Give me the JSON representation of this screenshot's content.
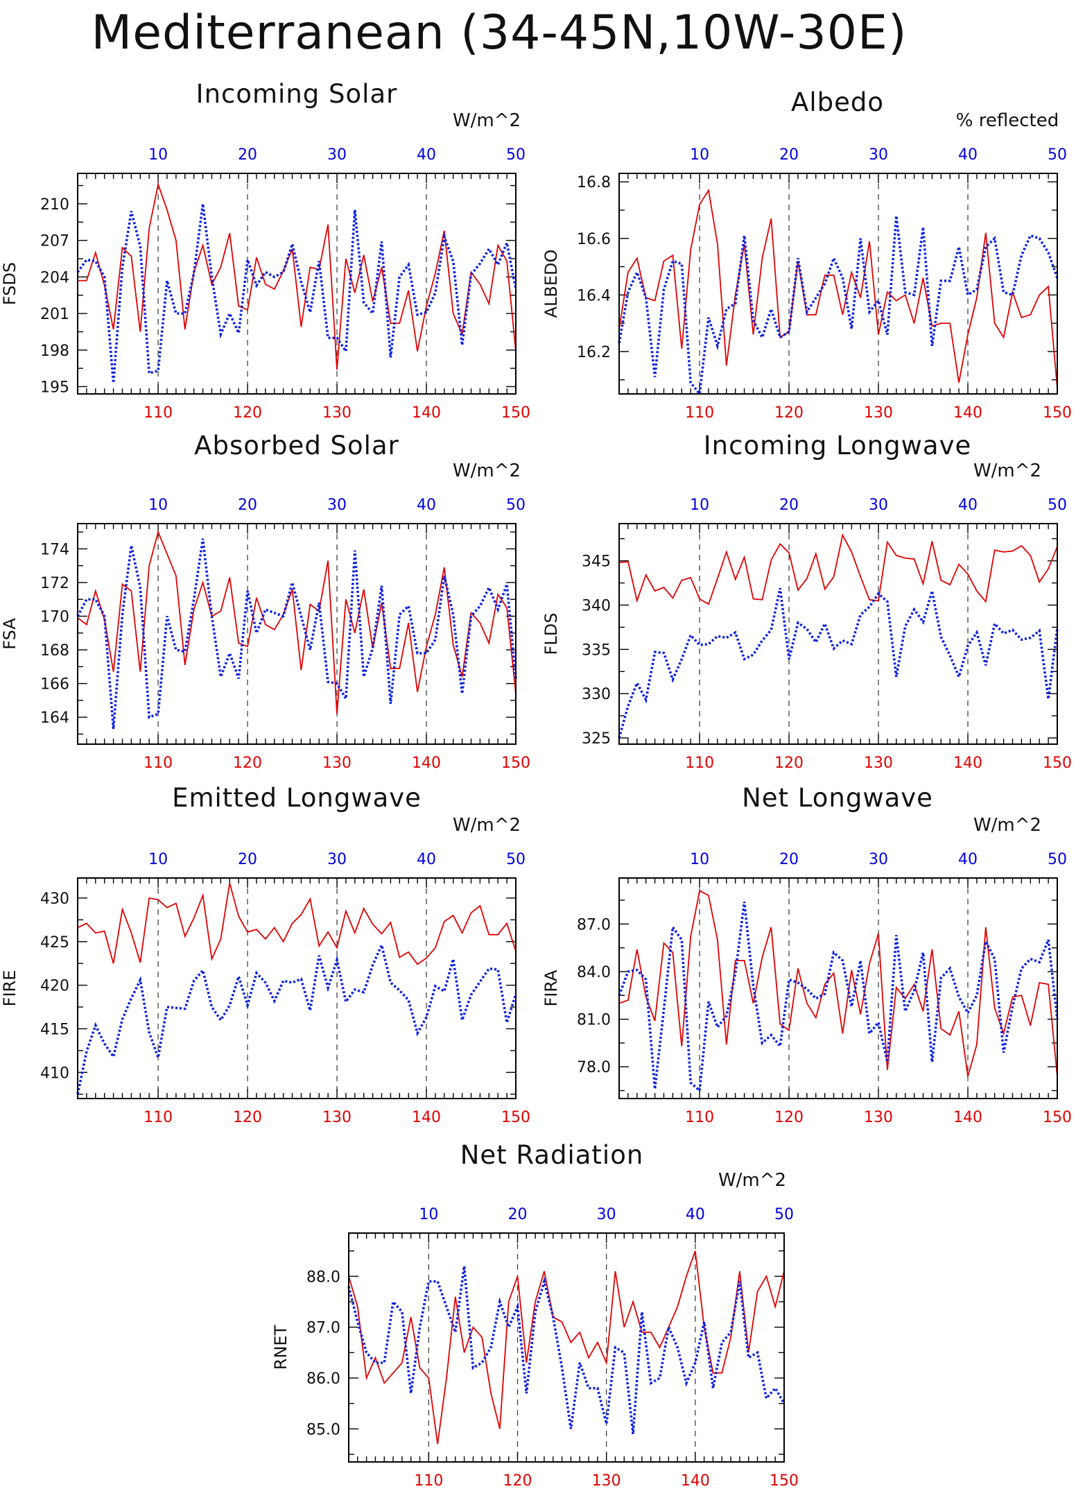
{
  "title": "Mediterranean (34-45N,10W-30E)",
  "colors": {
    "bottom_axis": "#e00000",
    "top_axis": "#0000e0",
    "series1": "#e00000",
    "series2": "#0a20e0"
  },
  "chart_data": [
    {
      "type": "line",
      "name": "fsds",
      "title": "Incoming Solar",
      "units": "W/m^2",
      "ylabel": "FSDS",
      "xlim_bottom": [
        101,
        150
      ],
      "xticks_bottom": [
        110,
        120,
        130,
        140,
        150
      ],
      "xlim_top": [
        1,
        50
      ],
      "xticks_top": [
        10,
        20,
        30,
        40,
        50
      ],
      "ylim": [
        194.4,
        212.5
      ],
      "yticks": [
        195,
        198,
        201,
        204,
        207,
        210
      ],
      "yticklabels": [
        "195",
        "198",
        "201",
        "204",
        "207",
        "210"
      ],
      "vlines_bottom": [
        110,
        120,
        130,
        140
      ],
      "series": [
        {
          "style": "solid",
          "values": [
            203.7,
            203.7,
            206.0,
            203.3,
            199.7,
            206.4,
            205.7,
            199.5,
            208.0,
            211.6,
            209.5,
            207.0,
            199.7,
            204.4,
            206.6,
            203.4,
            204.8,
            207.6,
            201.6,
            201.3,
            205.6,
            203.4,
            203.0,
            204.5,
            206.3,
            199.9,
            204.8,
            204.6,
            208.3,
            196.4,
            205.5,
            202.7,
            205.8,
            202.0,
            204.8,
            200.2,
            200.2,
            202.9,
            197.9,
            201.6,
            204.3,
            207.8,
            201.0,
            199.3,
            204.4,
            203.4,
            201.8,
            206.6,
            205.3,
            197.9
          ]
        },
        {
          "style": "dotted",
          "values": [
            204.4,
            205.4,
            205.3,
            204.0,
            195.3,
            204.8,
            209.4,
            206.5,
            196.1,
            196.3,
            203.7,
            201.0,
            201.0,
            204.3,
            210.0,
            204.0,
            199.3,
            201.0,
            199.4,
            205.4,
            203.3,
            204.4,
            204.0,
            204.4,
            206.7,
            203.6,
            201.1,
            205.3,
            199.0,
            199.0,
            197.9,
            209.5,
            201.9,
            201.0,
            206.9,
            197.4,
            204.0,
            205.0,
            200.9,
            201.1,
            202.7,
            207.3,
            205.3,
            198.4,
            204.2,
            205.1,
            206.3,
            205.0,
            206.8,
            203.0
          ]
        }
      ]
    },
    {
      "type": "line",
      "name": "albedo",
      "title": "Albedo",
      "units": "% reflected",
      "ylabel": "ALBEDO",
      "xlim_bottom": [
        101,
        150
      ],
      "xticks_bottom": [
        110,
        120,
        130,
        140,
        150
      ],
      "xlim_top": [
        1,
        50
      ],
      "xticks_top": [
        10,
        20,
        30,
        40,
        50
      ],
      "ylim": [
        16.05,
        16.83
      ],
      "yticks": [
        16.2,
        16.4,
        16.6,
        16.8
      ],
      "yticklabels": [
        "16.2",
        "16.4",
        "16.6",
        "16.8"
      ],
      "vlines_bottom": [
        110,
        120,
        130,
        140
      ],
      "series": [
        {
          "style": "solid",
          "values": [
            16.28,
            16.48,
            16.53,
            16.39,
            16.38,
            16.52,
            16.54,
            16.21,
            16.56,
            16.72,
            16.77,
            16.58,
            16.15,
            16.4,
            16.58,
            16.26,
            16.53,
            16.67,
            16.25,
            16.27,
            16.52,
            16.33,
            16.33,
            16.47,
            16.47,
            16.33,
            16.48,
            16.39,
            16.59,
            16.26,
            16.41,
            16.38,
            16.4,
            16.3,
            16.46,
            16.29,
            16.3,
            16.3,
            16.09,
            16.26,
            16.39,
            16.62,
            16.3,
            16.25,
            16.41,
            16.32,
            16.33,
            16.4,
            16.43,
            16.07
          ]
        },
        {
          "style": "dotted",
          "values": [
            16.23,
            16.41,
            16.48,
            16.39,
            16.11,
            16.42,
            16.52,
            16.51,
            16.09,
            16.05,
            16.32,
            16.22,
            16.35,
            16.37,
            16.61,
            16.31,
            16.25,
            16.35,
            16.25,
            16.27,
            16.53,
            16.34,
            16.39,
            16.44,
            16.53,
            16.46,
            16.28,
            16.6,
            16.34,
            16.38,
            16.26,
            16.68,
            16.41,
            16.4,
            16.64,
            16.22,
            16.45,
            16.45,
            16.57,
            16.4,
            16.42,
            16.57,
            16.6,
            16.41,
            16.4,
            16.54,
            16.61,
            16.6,
            16.55,
            16.46
          ]
        }
      ]
    },
    {
      "type": "line",
      "name": "fsa",
      "title": "Absorbed Solar",
      "units": "W/m^2",
      "ylabel": "FSA",
      "xlim_bottom": [
        101,
        150
      ],
      "xticks_bottom": [
        110,
        120,
        130,
        140,
        150
      ],
      "xlim_top": [
        1,
        50
      ],
      "xticks_top": [
        10,
        20,
        30,
        40,
        50
      ],
      "ylim": [
        162.4,
        175.5
      ],
      "yticks": [
        164,
        166,
        168,
        170,
        172,
        174
      ],
      "yticklabels": [
        "164",
        "166",
        "168",
        "170",
        "172",
        "174"
      ],
      "vlines_bottom": [
        110,
        120,
        130,
        140
      ],
      "series": [
        {
          "style": "solid",
          "values": [
            169.9,
            169.5,
            171.5,
            169.8,
            166.7,
            171.9,
            171.5,
            166.7,
            173.0,
            175.0,
            173.7,
            172.4,
            167.1,
            170.4,
            172.0,
            170.0,
            170.3,
            172.3,
            168.4,
            168.2,
            171.1,
            169.5,
            169.2,
            170.1,
            171.6,
            166.8,
            170.7,
            170.3,
            173.3,
            164.2,
            171.0,
            169.0,
            171.6,
            168.1,
            170.8,
            166.9,
            166.9,
            169.6,
            165.5,
            168.2,
            170.1,
            172.9,
            168.3,
            166.4,
            170.2,
            169.6,
            168.4,
            171.3,
            170.5,
            165.4
          ]
        },
        {
          "style": "dotted",
          "values": [
            170.0,
            171.0,
            171.0,
            170.0,
            163.3,
            170.1,
            174.2,
            171.7,
            164.0,
            164.2,
            170.0,
            168.0,
            167.9,
            171.0,
            174.6,
            170.0,
            166.4,
            167.8,
            166.3,
            171.5,
            169.0,
            170.4,
            170.2,
            170.0,
            172.0,
            170.0,
            168.0,
            170.8,
            166.1,
            166.0,
            165.1,
            173.9,
            166.4,
            168.1,
            171.8,
            164.8,
            170.1,
            170.6,
            167.8,
            167.8,
            168.6,
            172.4,
            170.1,
            165.4,
            170.0,
            170.6,
            171.7,
            170.4,
            171.9,
            166.3
          ]
        }
      ]
    },
    {
      "type": "line",
      "name": "flds",
      "title": "Incoming Longwave",
      "units": "W/m^2",
      "ylabel": "FLDS",
      "xlim_bottom": [
        101,
        150
      ],
      "xticks_bottom": [
        110,
        120,
        130,
        140,
        150
      ],
      "xlim_top": [
        1,
        50
      ],
      "xticks_top": [
        10,
        20,
        30,
        40,
        50
      ],
      "ylim": [
        324.3,
        349.2
      ],
      "yticks": [
        325,
        330,
        335,
        340,
        345
      ],
      "yticklabels": [
        "325",
        "330",
        "335",
        "340",
        "345"
      ],
      "vlines_bottom": [
        110,
        120,
        130,
        140
      ],
      "series": [
        {
          "style": "solid",
          "values": [
            344.8,
            344.9,
            340.5,
            343.4,
            341.6,
            342.0,
            340.8,
            342.8,
            343.1,
            340.7,
            340.1,
            343.0,
            346.0,
            342.9,
            345.4,
            340.7,
            340.6,
            345.1,
            346.9,
            345.9,
            341.7,
            343.0,
            345.8,
            341.8,
            343.2,
            347.9,
            346.0,
            343.2,
            340.6,
            340.5,
            347.1,
            345.6,
            345.3,
            345.2,
            342.4,
            347.2,
            342.8,
            342.3,
            344.6,
            343.5,
            341.6,
            340.4,
            346.2,
            346.0,
            346.1,
            346.7,
            345.6,
            342.6,
            344.1,
            346.6
          ]
        },
        {
          "style": "dotted",
          "values": [
            325.0,
            328.6,
            331.2,
            329.3,
            334.7,
            334.6,
            331.6,
            333.9,
            336.6,
            335.5,
            335.6,
            336.5,
            336.3,
            336.9,
            333.9,
            334.4,
            336.0,
            337.2,
            341.9,
            333.9,
            338.0,
            337.3,
            335.8,
            337.9,
            335.1,
            336.0,
            335.6,
            338.9,
            339.8,
            341.3,
            340.4,
            331.9,
            337.6,
            339.5,
            338.1,
            341.6,
            336.4,
            334.3,
            331.9,
            335.4,
            336.9,
            333.2,
            337.9,
            336.8,
            337.2,
            336.1,
            336.3,
            337.1,
            329.4,
            337.4
          ]
        }
      ]
    },
    {
      "type": "line",
      "name": "fire",
      "title": "Emitted Longwave",
      "units": "W/m^2",
      "ylabel": "FIRE",
      "xlim_bottom": [
        101,
        150
      ],
      "xticks_bottom": [
        110,
        120,
        130,
        140,
        150
      ],
      "xlim_top": [
        1,
        50
      ],
      "xticks_top": [
        10,
        20,
        30,
        40,
        50
      ],
      "ylim": [
        407.0,
        432.3
      ],
      "yticks": [
        410,
        415,
        420,
        425,
        430
      ],
      "yticklabels": [
        "410",
        "415",
        "420",
        "425",
        "430"
      ],
      "vlines_bottom": [
        110,
        120,
        130,
        140
      ],
      "series": [
        {
          "style": "solid",
          "values": [
            426.6,
            427.1,
            426.0,
            426.2,
            422.5,
            428.7,
            426.0,
            422.6,
            430.0,
            429.8,
            428.9,
            429.4,
            425.6,
            427.7,
            430.3,
            423.0,
            425.3,
            431.7,
            427.9,
            426.1,
            426.4,
            425.3,
            426.6,
            425.0,
            427.1,
            428.1,
            429.9,
            424.5,
            426.1,
            424.3,
            428.5,
            426.0,
            428.8,
            427.0,
            425.9,
            427.2,
            423.2,
            423.8,
            422.4,
            423.1,
            424.3,
            427.3,
            428.0,
            426.0,
            428.3,
            429.1,
            425.8,
            425.8,
            427.1,
            423.9
          ]
        },
        {
          "style": "dotted",
          "values": [
            407.5,
            412.4,
            415.4,
            413.3,
            411.8,
            416.1,
            418.5,
            420.6,
            414.6,
            411.7,
            417.5,
            417.4,
            417.3,
            420.5,
            421.7,
            417.5,
            416.0,
            417.7,
            421.0,
            417.7,
            421.4,
            420.3,
            418.2,
            420.5,
            420.3,
            420.7,
            417.1,
            423.4,
            419.7,
            422.9,
            418.1,
            419.5,
            419.2,
            422.3,
            424.6,
            420.3,
            419.4,
            418.3,
            414.5,
            416.3,
            419.9,
            419.3,
            423.0,
            416.0,
            418.9,
            420.4,
            421.9,
            421.8,
            415.7,
            419.0
          ]
        }
      ]
    },
    {
      "type": "line",
      "name": "fira",
      "title": "Net Longwave",
      "units": "W/m^2",
      "ylabel": "FIRA",
      "xlim_bottom": [
        101,
        150
      ],
      "xticks_bottom": [
        110,
        120,
        130,
        140,
        150
      ],
      "xlim_top": [
        1,
        50
      ],
      "xticks_top": [
        10,
        20,
        30,
        40,
        50
      ],
      "ylim": [
        76.0,
        89.9
      ],
      "yticks": [
        78,
        81,
        84,
        87
      ],
      "yticklabels": [
        "78.0",
        "81.0",
        "84.0",
        "87.0"
      ],
      "vlines_bottom": [
        110,
        120,
        130,
        140
      ],
      "series": [
        {
          "style": "solid",
          "values": [
            82.0,
            82.2,
            85.4,
            82.4,
            80.9,
            85.8,
            85.2,
            79.3,
            86.2,
            89.1,
            88.8,
            86.0,
            79.4,
            84.7,
            84.7,
            82.0,
            84.9,
            86.8,
            80.7,
            80.3,
            84.2,
            82.0,
            81.1,
            83.2,
            83.9,
            80.1,
            84.1,
            81.3,
            84.5,
            86.4,
            77.8,
            83.0,
            82.3,
            83.2,
            81.5,
            85.4,
            80.4,
            80.0,
            81.5,
            77.4,
            79.4,
            86.8,
            81.7,
            80.1,
            82.4,
            82.5,
            80.6,
            83.3,
            83.2,
            77.4
          ]
        },
        {
          "style": "dotted",
          "values": [
            82.5,
            84.0,
            84.1,
            83.5,
            76.6,
            81.6,
            86.8,
            86.0,
            77.0,
            76.5,
            82.1,
            80.5,
            81.2,
            83.9,
            88.4,
            83.1,
            79.5,
            80.0,
            79.3,
            83.5,
            83.3,
            82.9,
            82.3,
            82.6,
            85.2,
            84.7,
            81.8,
            84.7,
            80.1,
            80.8,
            78.3,
            86.3,
            81.5,
            82.8,
            85.2,
            78.3,
            83.6,
            84.2,
            82.4,
            81.4,
            82.5,
            85.9,
            84.8,
            78.9,
            81.8,
            84.2,
            84.8,
            84.6,
            86.0,
            81.0
          ]
        }
      ]
    },
    {
      "type": "line",
      "name": "rnet",
      "title": "Net Radiation",
      "units": "W/m^2",
      "ylabel": "RNET",
      "xlim_bottom": [
        101,
        150
      ],
      "xticks_bottom": [
        110,
        120,
        130,
        140,
        150
      ],
      "xlim_top": [
        1,
        50
      ],
      "xticks_top": [
        10,
        20,
        30,
        40,
        50
      ],
      "ylim": [
        84.35,
        88.85
      ],
      "yticks": [
        85,
        86,
        87,
        88
      ],
      "yticklabels": [
        "85.0",
        "86.0",
        "87.0",
        "88.0"
      ],
      "vlines_bottom": [
        110,
        120,
        130,
        140
      ],
      "series": [
        {
          "style": "solid",
          "values": [
            88.0,
            87.4,
            86.0,
            86.4,
            85.9,
            86.1,
            86.3,
            87.2,
            86.2,
            86.0,
            84.7,
            86.0,
            87.6,
            86.5,
            87.0,
            86.8,
            85.7,
            85.0,
            87.5,
            88.0,
            86.3,
            87.5,
            88.1,
            87.2,
            87.1,
            86.7,
            86.9,
            86.4,
            86.7,
            86.3,
            88.1,
            87.0,
            87.5,
            86.9,
            86.9,
            86.6,
            87.0,
            87.4,
            88.0,
            88.5,
            87.0,
            86.1,
            86.1,
            86.8,
            88.1,
            86.5,
            87.7,
            88.0,
            87.4,
            88.1
          ]
        },
        {
          "style": "dotted",
          "values": [
            87.8,
            87.1,
            86.5,
            86.3,
            86.3,
            87.5,
            87.3,
            85.7,
            87.0,
            87.9,
            87.9,
            87.4,
            86.9,
            88.2,
            86.2,
            86.3,
            86.6,
            87.5,
            87.0,
            87.4,
            85.7,
            87.3,
            87.9,
            87.2,
            86.2,
            85.0,
            86.3,
            85.8,
            85.8,
            85.1,
            86.6,
            86.5,
            84.9,
            87.3,
            85.9,
            86.0,
            87.0,
            86.6,
            85.9,
            86.3,
            87.1,
            85.8,
            86.7,
            86.9,
            87.9,
            86.4,
            86.5,
            85.6,
            85.8,
            85.5
          ]
        }
      ]
    }
  ]
}
